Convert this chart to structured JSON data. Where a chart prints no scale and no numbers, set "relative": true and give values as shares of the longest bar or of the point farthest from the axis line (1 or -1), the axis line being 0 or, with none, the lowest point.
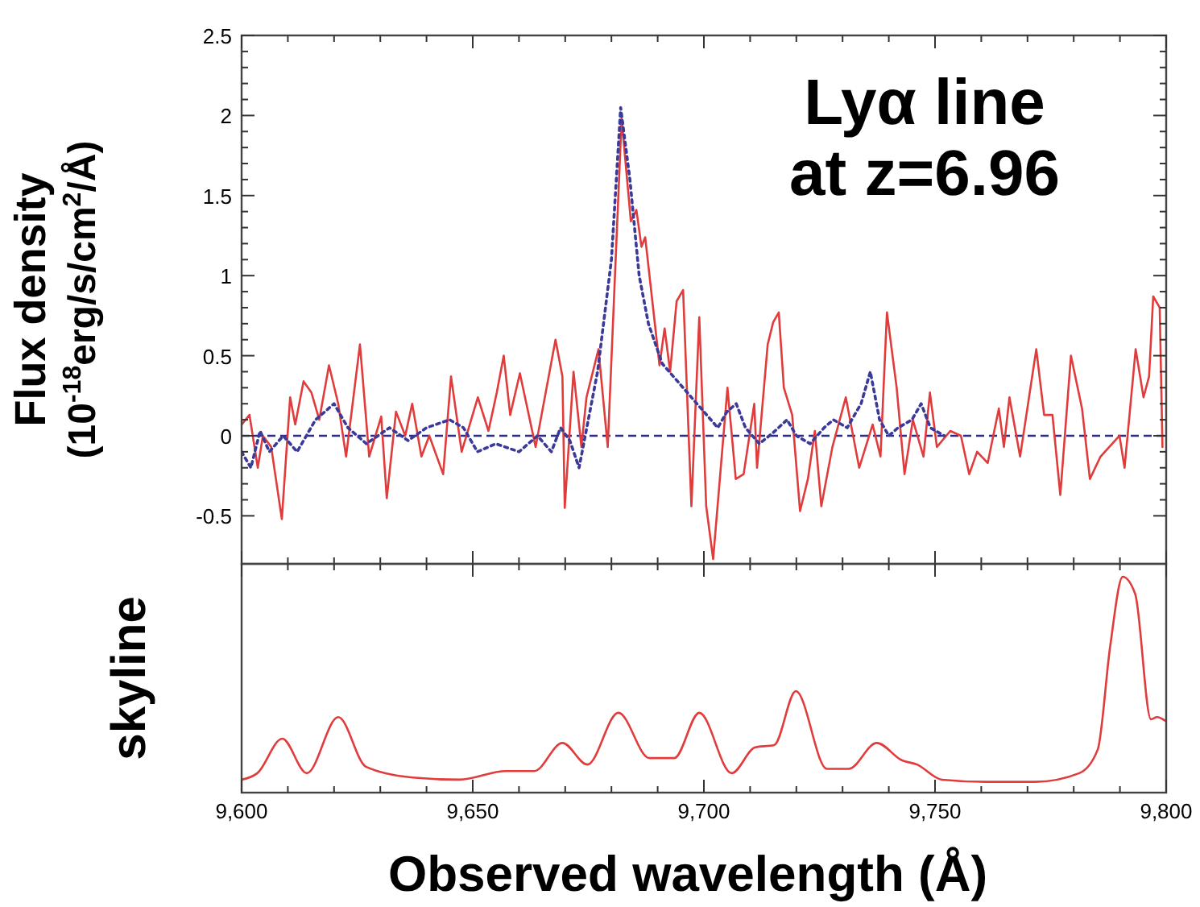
{
  "chart_data": [
    {
      "type": "line",
      "ylabel": "Flux density (10$^{-18}$erg/s/cm$^{2}$/Å)",
      "annotations": [
        "Lyα line at z=6.96"
      ],
      "xlim": [
        9600,
        9800
      ],
      "xticks": [
        9600,
        9650,
        9700,
        9750,
        9800
      ],
      "ylim": [
        -0.8,
        2.5
      ],
      "yticks": [
        -0.5,
        0,
        0.5,
        1,
        1.5,
        2,
        2.5
      ],
      "tick_labels": "y",
      "ref_lines": [
        {
          "axis": "y",
          "value": 0,
          "color": "#2b2b8c",
          "line_style": "dashed"
        }
      ],
      "series": [
        {
          "color": "#e03c3c",
          "line_style": "solid",
          "x": [
            9600,
            9601.7,
            9603.5,
            9604.6,
            9606.4,
            9608.7,
            9610.5,
            9611.6,
            9613.4,
            9615.1,
            9616.8,
            9618.9,
            9620.9,
            9622.6,
            9625.6,
            9627.6,
            9630.2,
            9631.4,
            9633.4,
            9635.4,
            9636.9,
            9638.9,
            9640.6,
            9643.6,
            9645.3,
            9647.6,
            9651.1,
            9653.4,
            9655.2,
            9656.7,
            9658.1,
            9660.2,
            9663.6,
            9666.2,
            9667.9,
            9669.4,
            9669.9,
            9671.8,
            9673.5,
            9674.6,
            9677.2,
            9679.2,
            9682.2,
            9684.2,
            9685.4,
            9686.5,
            9687.3,
            9690.4,
            9691.5,
            9692.7,
            9694.1,
            9695.5,
            9697.3,
            9699,
            9700.5,
            9702,
            9705.1,
            9706.9,
            9708.6,
            9710.9,
            9711.5,
            9713.8,
            9715,
            9716.2,
            9717.3,
            9719.1,
            9720.8,
            9722.5,
            9724,
            9725.4,
            9727.8,
            9730.7,
            9733.6,
            9736.5,
            9738.2,
            9739.6,
            9741.7,
            9743.4,
            9745.2,
            9747.5,
            9748.9,
            9750.4,
            9753.3,
            9755.6,
            9757.4,
            9759.1,
            9761.4,
            9763.8,
            9764.9,
            9766.1,
            9768.4,
            9771.9,
            9773.6,
            9775.4,
            9777.1,
            9779.4,
            9781.8,
            9783.5,
            9785.8,
            9788.2,
            9789.9,
            9791,
            9793.4,
            9795.1,
            9796.3,
            9797.2,
            9798.6,
            9799.2
          ],
          "values": [
            0.07,
            0.13,
            -0.2,
            0,
            -0.07,
            -0.52,
            0.24,
            0.07,
            0.34,
            0.27,
            0.1,
            0.44,
            0.2,
            -0.13,
            0.57,
            -0.13,
            0.12,
            -0.39,
            0.15,
            0,
            0.2,
            -0.13,
            0,
            -0.24,
            0.37,
            -0.1,
            0.24,
            0.03,
            0.27,
            0.5,
            0.13,
            0.39,
            -0.07,
            null,
            0.6,
            0.37,
            -0.45,
            0.4,
            -0.07,
            0.24,
            0.54,
            -0.07,
            1.98,
            1.34,
            1.41,
            1.18,
            1.24,
            0.44,
            0.67,
            0.4,
            0.84,
            0.91,
            -0.44,
            0.74,
            -0.44,
            -0.77,
            0.3,
            -0.27,
            -0.24,
            0.2,
            -0.2,
            0.57,
            0.71,
            0.77,
            0.3,
            0.13,
            -0.47,
            -0.27,
            0.03,
            -0.44,
            -0.07,
            0.24,
            -0.2,
            0.07,
            -0.13,
            0.77,
            0.3,
            -0.24,
            0.1,
            -0.13,
            0.27,
            -0.07,
            0.03,
            0,
            -0.24,
            -0.1,
            -0.17,
            0.17,
            -0.07,
            0.24,
            -0.13,
            0.54,
            0.13,
            0.13,
            -0.37,
            0.5,
            0.17,
            -0.27,
            -0.13,
            null,
            0,
            -0.2,
            0.54,
            0.24,
            0.37,
            0.87,
            0.8,
            -0.07
          ]
        },
        {
          "color": "#3a3a9a",
          "line_style": "dotted",
          "x": [
            9600,
            9602,
            9604,
            9606,
            9609,
            9612,
            9616,
            9620,
            9623,
            9627,
            9632,
            9636,
            9640,
            9645,
            9648,
            9651,
            9655,
            9660,
            9664,
            9667,
            9669,
            9671,
            9673,
            9675,
            9677,
            9680,
            9682,
            9684,
            9686,
            9688,
            9691,
            9694,
            9697,
            9700,
            9703,
            9705,
            9707,
            9709,
            9712,
            9715,
            9718,
            9720,
            9723,
            9726,
            9728,
            9731,
            9734,
            9736,
            9738,
            9740,
            9742,
            9745,
            9747,
            9749,
            9752
          ],
          "values": [
            -0.1,
            -0.2,
            0.03,
            -0.1,
            0,
            -0.1,
            0.1,
            0.2,
            0.05,
            -0.05,
            0.05,
            -0.03,
            0.05,
            0.1,
            0.05,
            -0.1,
            -0.05,
            -0.1,
            0,
            -0.1,
            0.05,
            -0.03,
            -0.2,
            0.1,
            0.4,
            1.1,
            2.05,
            1.6,
            1,
            0.7,
            0.45,
            0.35,
            0.25,
            0.15,
            0.05,
            0.15,
            0.2,
            0.05,
            -0.05,
            0.02,
            0.1,
            0,
            -0.05,
            0.05,
            0.1,
            0.05,
            0.2,
            0.4,
            0.1,
            0,
            0.05,
            0.1,
            0.2,
            0.05,
            0
          ]
        }
      ]
    },
    {
      "type": "line",
      "ylabel": "skyline",
      "xlabel": "Observed wavelength (Å)",
      "relative": true,
      "xlim": [
        9600,
        9800
      ],
      "xticks": [
        {
          "value": 9600,
          "label": "9,600"
        },
        {
          "value": 9650,
          "label": "9,650"
        },
        {
          "value": 9700,
          "label": "9,700"
        },
        {
          "value": 9750,
          "label": "9,750"
        },
        {
          "value": 9800,
          "label": "9,800"
        }
      ],
      "tick_labels": "x",
      "series": [
        {
          "color": "#e03c3c",
          "line_style": "solid",
          "x": [
            9600,
            9603.4,
            9608.8,
            9614.1,
            9620.9,
            9626.9,
            9637,
            9647.1,
            9657.2,
            9663.3,
            9669.4,
            9674.8,
            9681.5,
            9688.2,
            9693.6,
            9699,
            9706,
            9711.1,
            9715.2,
            9719.9,
            9726.6,
            9731.3,
            9737.4,
            9742.8,
            9746.1,
            9751.5,
            9761,
            9771.7,
            9781.2,
            9785.2,
            9787.9,
            9790.6,
            9793.3,
            9796.7,
            9798,
            9800
          ],
          "values": [
            0.06,
            0.09,
            0.25,
            0.09,
            0.35,
            0.12,
            0.07,
            0.06,
            0.1,
            0.1,
            0.23,
            0.13,
            0.37,
            0.16,
            0.16,
            0.37,
            0.09,
            0.21,
            0.22,
            0.47,
            0.11,
            0.11,
            0.23,
            0.15,
            0.13,
            0.06,
            0.05,
            0.05,
            0.09,
            0.2,
            0.68,
            1,
            0.92,
            0.34,
            0.35,
            0.33
          ]
        }
      ]
    }
  ]
}
